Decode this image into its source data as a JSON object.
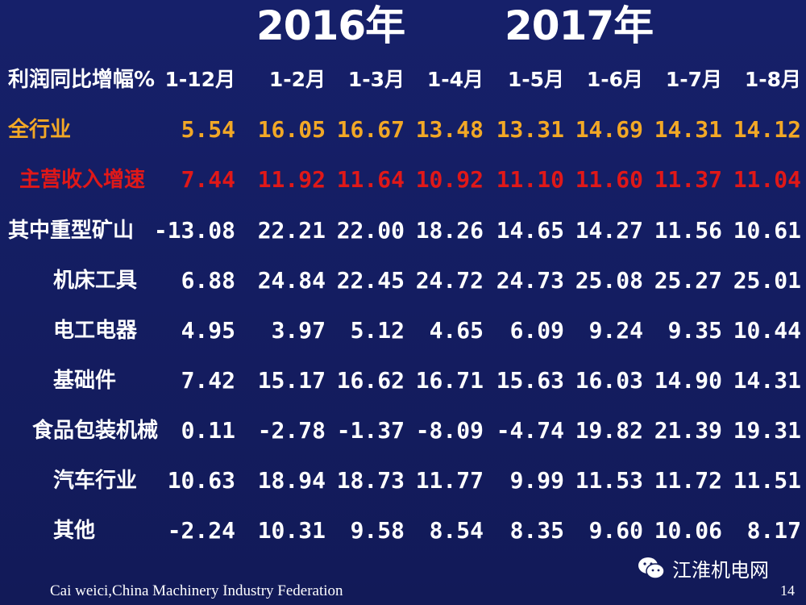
{
  "years": {
    "first": "2016年",
    "second": "2017年"
  },
  "header": {
    "title": "利润同比增幅%",
    "periods": [
      "1-12月",
      "1-2月",
      "1-3月",
      "1-4月",
      "1-5月",
      "1-6月",
      "1-7月",
      "1-8月"
    ]
  },
  "rows": [
    {
      "label": "全行业",
      "color": "#f2a826",
      "values": [
        "5.54",
        "16.05",
        "16.67",
        "13.48",
        "13.31",
        "14.69",
        "14.31",
        "14.12"
      ]
    },
    {
      "label": "主营收入增速",
      "color": "#e01818",
      "values": [
        "7.44",
        "11.92",
        "11.64",
        "10.92",
        "11.10",
        "11.60",
        "11.37",
        "11.04"
      ]
    },
    {
      "label": "其中重型矿山",
      "color": "#ffffff",
      "values": [
        "-13.08",
        "22.21",
        "22.00",
        "18.26",
        "14.65",
        "14.27",
        "11.56",
        "10.61"
      ]
    },
    {
      "label": "机床工具",
      "color": "#ffffff",
      "values": [
        "6.88",
        "24.84",
        "22.45",
        "24.72",
        "24.73",
        "25.08",
        "25.27",
        "25.01"
      ]
    },
    {
      "label": "电工电器",
      "color": "#ffffff",
      "values": [
        "4.95",
        "3.97",
        "5.12",
        "4.65",
        "6.09",
        "9.24",
        "9.35",
        "10.44"
      ]
    },
    {
      "label": "基础件",
      "color": "#ffffff",
      "values": [
        "7.42",
        "15.17",
        "16.62",
        "16.71",
        "15.63",
        "16.03",
        "14.90",
        "14.31"
      ]
    },
    {
      "label": "食品包装机械",
      "color": "#ffffff",
      "values": [
        "0.11",
        "-2.78",
        "-1.37",
        "-8.09",
        "-4.74",
        "19.82",
        "21.39",
        "19.31"
      ]
    },
    {
      "label": "汽车行业",
      "color": "#ffffff",
      "values": [
        "10.63",
        "18.94",
        "18.73",
        "11.77",
        "9.99",
        "11.53",
        "11.72",
        "11.51"
      ]
    },
    {
      "label": "其他",
      "color": "#ffffff",
      "values": [
        "-2.24",
        "10.31",
        "9.58",
        "8.54",
        "8.35",
        "9.60",
        "10.06",
        "8.17"
      ]
    }
  ],
  "footer": {
    "credit": "Cai weici,China Machinery Industry Federation",
    "page_number": "14",
    "watermark": "江淮机电网",
    "watermark_icon": "wechat-icon"
  },
  "colors": {
    "background": "#141c5a",
    "highlight": "#f2a826",
    "alert": "#e01818",
    "text": "#ffffff"
  }
}
